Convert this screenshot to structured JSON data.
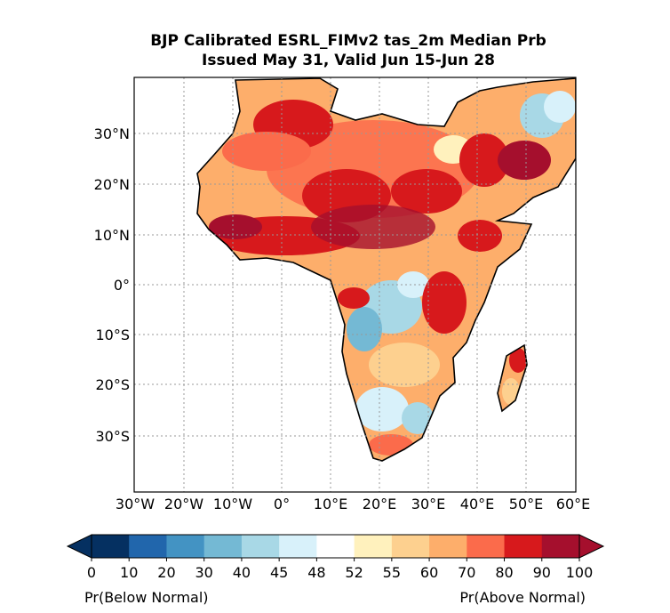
{
  "title_line1": "BJP Calibrated ESRL_FIMv2 tas_2m Median Prb",
  "title_line2": "Issued May 31, Valid Jun 15-Jun 28",
  "map": {
    "lon_ticks": [
      "30°W",
      "20°W",
      "10°W",
      "0°",
      "10°E",
      "20°E",
      "30°E",
      "40°E",
      "50°E",
      "60°E"
    ],
    "lat_ticks": [
      "30°N",
      "20°N",
      "10°N",
      "0°",
      "10°S",
      "20°S",
      "30°S"
    ],
    "grid": true
  },
  "colorbar": {
    "tick_labels": [
      "0",
      "10",
      "20",
      "30",
      "40",
      "45",
      "48",
      "52",
      "55",
      "60",
      "70",
      "80",
      "90",
      "100"
    ],
    "colors": [
      "#053061",
      "#2166ac",
      "#4393c3",
      "#74b9d4",
      "#a8d8e6",
      "#d8f1fa",
      "#ffffff",
      "#fff1bd",
      "#fdd08f",
      "#fdae6b",
      "#fb6b4b",
      "#d7191c",
      "#a50f2d"
    ],
    "left_label": "Pr(Below Normal)",
    "right_label": "Pr(Above Normal)"
  }
}
